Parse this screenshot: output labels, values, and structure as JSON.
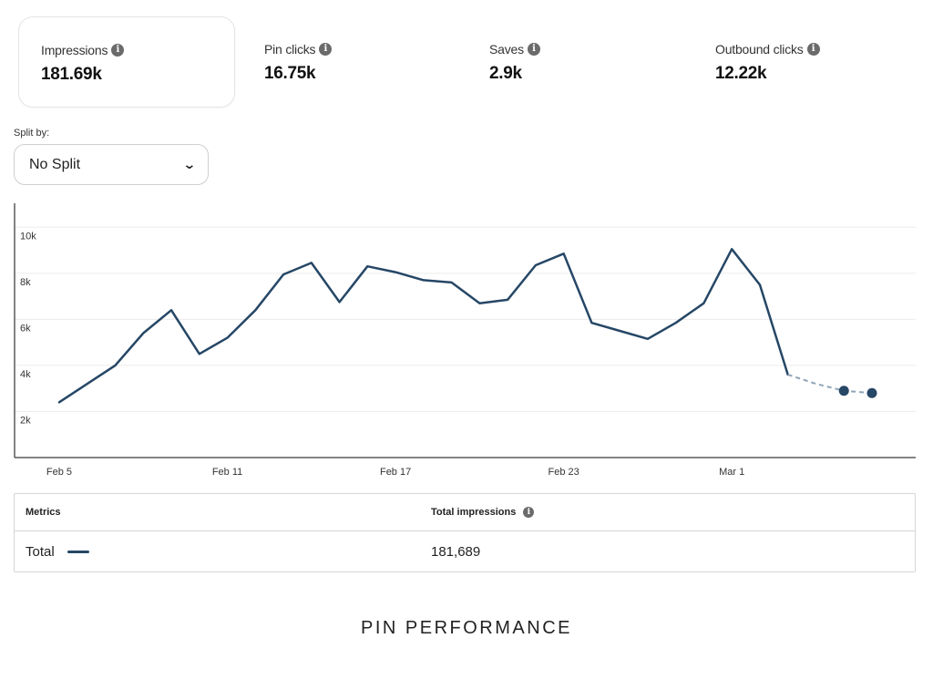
{
  "metrics": [
    {
      "label": "Impressions",
      "value": "181.69k",
      "selected": true
    },
    {
      "label": "Pin clicks",
      "value": "16.75k",
      "selected": false
    },
    {
      "label": "Saves",
      "value": "2.9k",
      "selected": false
    },
    {
      "label": "Outbound clicks",
      "value": "12.22k",
      "selected": false
    }
  ],
  "split": {
    "label": "Split by:",
    "value": "No Split"
  },
  "table": {
    "headers": [
      "Metrics",
      "Total impressions"
    ],
    "row": {
      "name": "Total",
      "value": "181,689"
    }
  },
  "caption": "PIN PERFORMANCE",
  "chart_data": {
    "type": "line",
    "title": "",
    "xlabel": "",
    "ylabel": "",
    "ylim": [
      0,
      11000
    ],
    "y_ticks": [
      "2k",
      "4k",
      "6k",
      "8k",
      "10k"
    ],
    "y_tick_values": [
      2000,
      4000,
      6000,
      8000,
      10000
    ],
    "x_ticks": [
      "Feb 5",
      "Feb 11",
      "Feb 17",
      "Feb 23",
      "Mar 1"
    ],
    "x": [
      "Feb 5",
      "Feb 6",
      "Feb 7",
      "Feb 8",
      "Feb 9",
      "Feb 10",
      "Feb 11",
      "Feb 12",
      "Feb 13",
      "Feb 14",
      "Feb 15",
      "Feb 16",
      "Feb 17",
      "Feb 18",
      "Feb 19",
      "Feb 20",
      "Feb 21",
      "Feb 22",
      "Feb 23",
      "Feb 24",
      "Feb 25",
      "Feb 26",
      "Feb 27",
      "Feb 28",
      "Mar 1",
      "Mar 2",
      "Mar 3",
      "Mar 4",
      "Mar 5",
      "Mar 6"
    ],
    "series": [
      {
        "values": [
          2400,
          3200,
          4000,
          5400,
          6400,
          4500,
          5200,
          6400,
          7950,
          8450,
          6750,
          8300,
          8050,
          7700,
          7600,
          6700,
          6850,
          8350,
          8850,
          5850,
          5500,
          5150,
          5850,
          6700,
          9050,
          7500,
          3600,
          3200,
          2900,
          2800
        ],
        "estimated_from_index": 27,
        "color": "#264766"
      }
    ],
    "grid": true,
    "legend": "none"
  }
}
